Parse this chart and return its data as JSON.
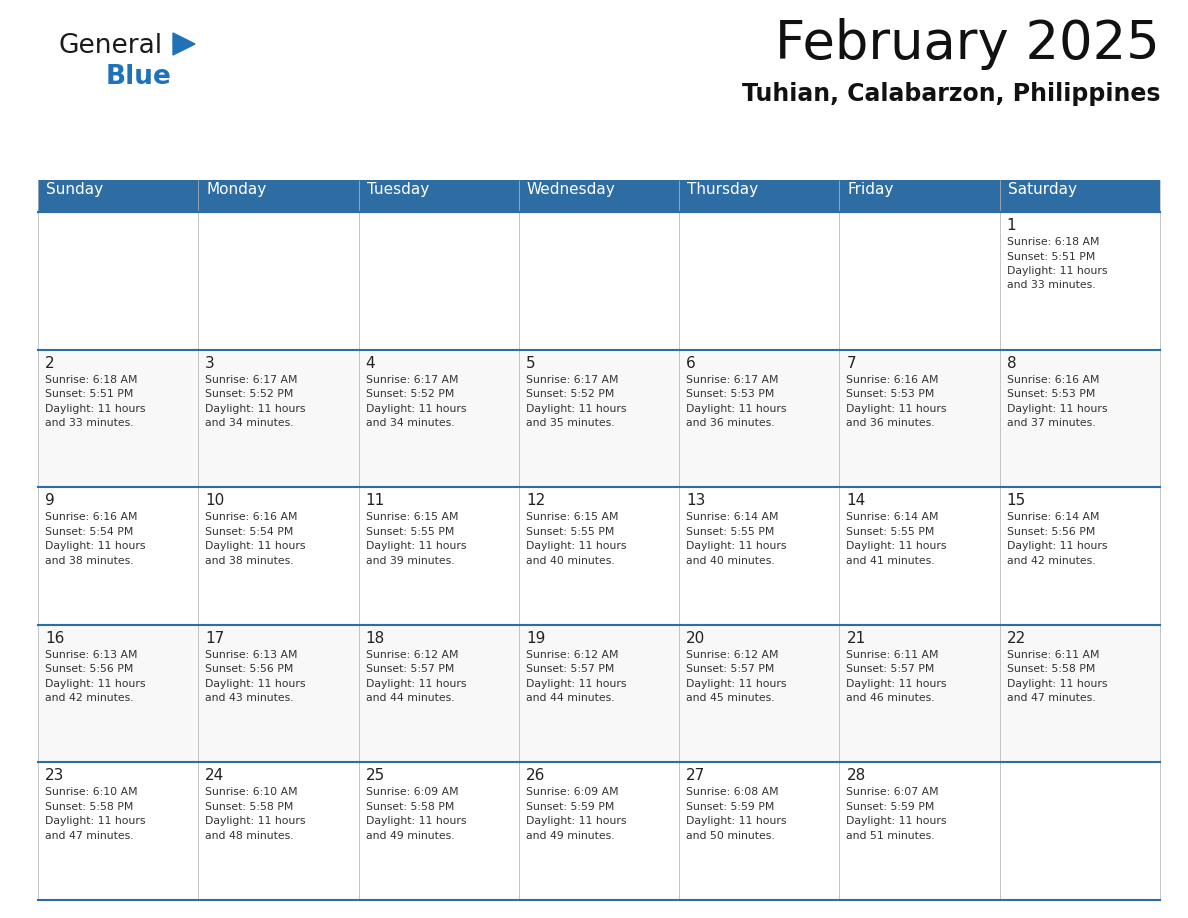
{
  "title": "February 2025",
  "subtitle": "Tuhian, Calabarzon, Philippines",
  "header_bg_color": "#2E6DA4",
  "header_text_color": "#FFFFFF",
  "cell_border_color": "#2E6DA4",
  "days_of_week": [
    "Sunday",
    "Monday",
    "Tuesday",
    "Wednesday",
    "Thursday",
    "Friday",
    "Saturday"
  ],
  "calendar_data": [
    [
      {
        "day": null,
        "sunrise": null,
        "sunset": null,
        "daylight_hours": null,
        "daylight_minutes": null
      },
      {
        "day": null,
        "sunrise": null,
        "sunset": null,
        "daylight_hours": null,
        "daylight_minutes": null
      },
      {
        "day": null,
        "sunrise": null,
        "sunset": null,
        "daylight_hours": null,
        "daylight_minutes": null
      },
      {
        "day": null,
        "sunrise": null,
        "sunset": null,
        "daylight_hours": null,
        "daylight_minutes": null
      },
      {
        "day": null,
        "sunrise": null,
        "sunset": null,
        "daylight_hours": null,
        "daylight_minutes": null
      },
      {
        "day": null,
        "sunrise": null,
        "sunset": null,
        "daylight_hours": null,
        "daylight_minutes": null
      },
      {
        "day": 1,
        "sunrise": "6:18 AM",
        "sunset": "5:51 PM",
        "daylight_hours": 11,
        "daylight_minutes": 33
      }
    ],
    [
      {
        "day": 2,
        "sunrise": "6:18 AM",
        "sunset": "5:51 PM",
        "daylight_hours": 11,
        "daylight_minutes": 33
      },
      {
        "day": 3,
        "sunrise": "6:17 AM",
        "sunset": "5:52 PM",
        "daylight_hours": 11,
        "daylight_minutes": 34
      },
      {
        "day": 4,
        "sunrise": "6:17 AM",
        "sunset": "5:52 PM",
        "daylight_hours": 11,
        "daylight_minutes": 34
      },
      {
        "day": 5,
        "sunrise": "6:17 AM",
        "sunset": "5:52 PM",
        "daylight_hours": 11,
        "daylight_minutes": 35
      },
      {
        "day": 6,
        "sunrise": "6:17 AM",
        "sunset": "5:53 PM",
        "daylight_hours": 11,
        "daylight_minutes": 36
      },
      {
        "day": 7,
        "sunrise": "6:16 AM",
        "sunset": "5:53 PM",
        "daylight_hours": 11,
        "daylight_minutes": 36
      },
      {
        "day": 8,
        "sunrise": "6:16 AM",
        "sunset": "5:53 PM",
        "daylight_hours": 11,
        "daylight_minutes": 37
      }
    ],
    [
      {
        "day": 9,
        "sunrise": "6:16 AM",
        "sunset": "5:54 PM",
        "daylight_hours": 11,
        "daylight_minutes": 38
      },
      {
        "day": 10,
        "sunrise": "6:16 AM",
        "sunset": "5:54 PM",
        "daylight_hours": 11,
        "daylight_minutes": 38
      },
      {
        "day": 11,
        "sunrise": "6:15 AM",
        "sunset": "5:55 PM",
        "daylight_hours": 11,
        "daylight_minutes": 39
      },
      {
        "day": 12,
        "sunrise": "6:15 AM",
        "sunset": "5:55 PM",
        "daylight_hours": 11,
        "daylight_minutes": 40
      },
      {
        "day": 13,
        "sunrise": "6:14 AM",
        "sunset": "5:55 PM",
        "daylight_hours": 11,
        "daylight_minutes": 40
      },
      {
        "day": 14,
        "sunrise": "6:14 AM",
        "sunset": "5:55 PM",
        "daylight_hours": 11,
        "daylight_minutes": 41
      },
      {
        "day": 15,
        "sunrise": "6:14 AM",
        "sunset": "5:56 PM",
        "daylight_hours": 11,
        "daylight_minutes": 42
      }
    ],
    [
      {
        "day": 16,
        "sunrise": "6:13 AM",
        "sunset": "5:56 PM",
        "daylight_hours": 11,
        "daylight_minutes": 42
      },
      {
        "day": 17,
        "sunrise": "6:13 AM",
        "sunset": "5:56 PM",
        "daylight_hours": 11,
        "daylight_minutes": 43
      },
      {
        "day": 18,
        "sunrise": "6:12 AM",
        "sunset": "5:57 PM",
        "daylight_hours": 11,
        "daylight_minutes": 44
      },
      {
        "day": 19,
        "sunrise": "6:12 AM",
        "sunset": "5:57 PM",
        "daylight_hours": 11,
        "daylight_minutes": 44
      },
      {
        "day": 20,
        "sunrise": "6:12 AM",
        "sunset": "5:57 PM",
        "daylight_hours": 11,
        "daylight_minutes": 45
      },
      {
        "day": 21,
        "sunrise": "6:11 AM",
        "sunset": "5:57 PM",
        "daylight_hours": 11,
        "daylight_minutes": 46
      },
      {
        "day": 22,
        "sunrise": "6:11 AM",
        "sunset": "5:58 PM",
        "daylight_hours": 11,
        "daylight_minutes": 47
      }
    ],
    [
      {
        "day": 23,
        "sunrise": "6:10 AM",
        "sunset": "5:58 PM",
        "daylight_hours": 11,
        "daylight_minutes": 47
      },
      {
        "day": 24,
        "sunrise": "6:10 AM",
        "sunset": "5:58 PM",
        "daylight_hours": 11,
        "daylight_minutes": 48
      },
      {
        "day": 25,
        "sunrise": "6:09 AM",
        "sunset": "5:58 PM",
        "daylight_hours": 11,
        "daylight_minutes": 49
      },
      {
        "day": 26,
        "sunrise": "6:09 AM",
        "sunset": "5:59 PM",
        "daylight_hours": 11,
        "daylight_minutes": 49
      },
      {
        "day": 27,
        "sunrise": "6:08 AM",
        "sunset": "5:59 PM",
        "daylight_hours": 11,
        "daylight_minutes": 50
      },
      {
        "day": 28,
        "sunrise": "6:07 AM",
        "sunset": "5:59 PM",
        "daylight_hours": 11,
        "daylight_minutes": 51
      },
      {
        "day": null,
        "sunrise": null,
        "sunset": null,
        "daylight_hours": null,
        "daylight_minutes": null
      }
    ]
  ],
  "logo_color_general": "#1a1a1a",
  "logo_color_blue": "#2072B8",
  "logo_triangle_color": "#2072B8",
  "title_fontsize": 38,
  "subtitle_fontsize": 17,
  "header_fontsize": 11,
  "day_number_fontsize": 11,
  "cell_text_fontsize": 7.8
}
